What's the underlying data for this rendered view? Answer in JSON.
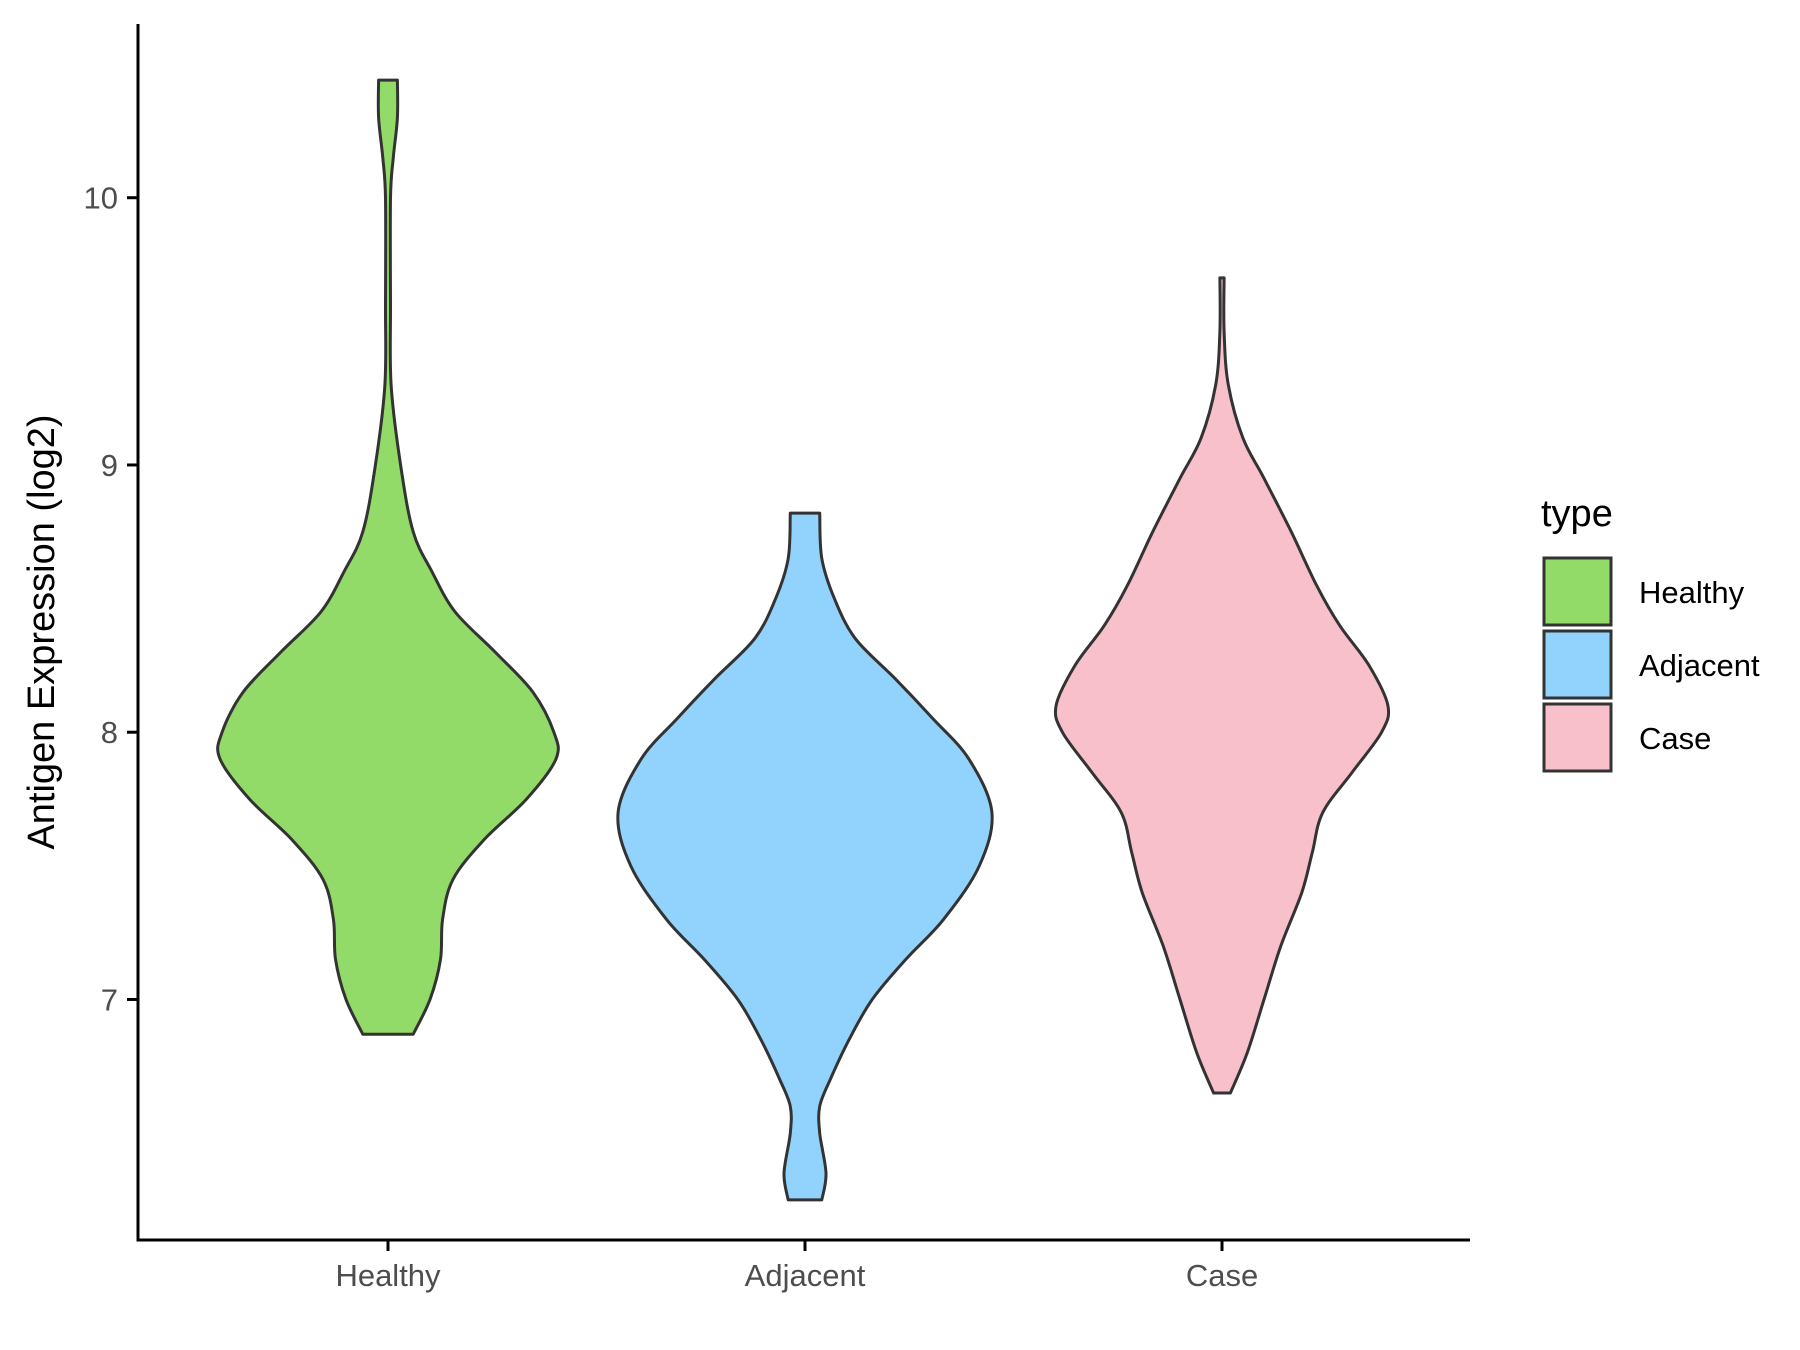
{
  "chart_data": {
    "type": "violin",
    "title": "",
    "xlabel": "",
    "ylabel": "Antigen Expression (log2)",
    "ylim": [
      6.1,
      10.65
    ],
    "y_ticks": [
      7,
      8,
      9,
      10
    ],
    "grid": false,
    "categories": [
      "Healthy",
      "Adjacent",
      "Case"
    ],
    "legend": {
      "title": "type",
      "position": "right",
      "entries": [
        "Healthy",
        "Adjacent",
        "Case"
      ]
    },
    "series": [
      {
        "name": "Healthy",
        "color": "#93DB69",
        "range": [
          6.87,
          10.44
        ],
        "profile": [
          [
            6.87,
            0.12
          ],
          [
            7.0,
            0.2
          ],
          [
            7.15,
            0.25
          ],
          [
            7.3,
            0.26
          ],
          [
            7.45,
            0.31
          ],
          [
            7.6,
            0.46
          ],
          [
            7.75,
            0.66
          ],
          [
            7.9,
            0.8
          ],
          [
            8.0,
            0.79
          ],
          [
            8.15,
            0.69
          ],
          [
            8.3,
            0.51
          ],
          [
            8.45,
            0.32
          ],
          [
            8.6,
            0.21
          ],
          [
            8.75,
            0.12
          ],
          [
            9.0,
            0.06
          ],
          [
            9.3,
            0.015
          ],
          [
            9.6,
            0.012
          ],
          [
            10.0,
            0.012
          ],
          [
            10.15,
            0.025
          ],
          [
            10.3,
            0.045
          ],
          [
            10.44,
            0.045
          ]
        ]
      },
      {
        "name": "Adjacent",
        "color": "#92D3FE",
        "range": [
          6.25,
          8.82
        ],
        "profile": [
          [
            6.25,
            0.08
          ],
          [
            6.35,
            0.1
          ],
          [
            6.5,
            0.07
          ],
          [
            6.6,
            0.07
          ],
          [
            6.7,
            0.12
          ],
          [
            6.85,
            0.21
          ],
          [
            7.0,
            0.32
          ],
          [
            7.15,
            0.48
          ],
          [
            7.3,
            0.66
          ],
          [
            7.5,
            0.83
          ],
          [
            7.7,
            0.89
          ],
          [
            7.9,
            0.78
          ],
          [
            8.05,
            0.61
          ],
          [
            8.2,
            0.43
          ],
          [
            8.35,
            0.24
          ],
          [
            8.5,
            0.14
          ],
          [
            8.65,
            0.08
          ],
          [
            8.82,
            0.07
          ]
        ]
      },
      {
        "name": "Case",
        "color": "#F8C0CB",
        "range": [
          6.65,
          9.7
        ],
        "profile": [
          [
            6.65,
            0.04
          ],
          [
            6.8,
            0.12
          ],
          [
            7.0,
            0.2
          ],
          [
            7.2,
            0.28
          ],
          [
            7.4,
            0.38
          ],
          [
            7.55,
            0.43
          ],
          [
            7.7,
            0.48
          ],
          [
            7.85,
            0.62
          ],
          [
            8.0,
            0.76
          ],
          [
            8.1,
            0.79
          ],
          [
            8.25,
            0.7
          ],
          [
            8.4,
            0.56
          ],
          [
            8.55,
            0.45
          ],
          [
            8.75,
            0.33
          ],
          [
            8.95,
            0.2
          ],
          [
            9.1,
            0.1
          ],
          [
            9.3,
            0.03
          ],
          [
            9.5,
            0.01
          ],
          [
            9.7,
            0.01
          ]
        ]
      }
    ]
  }
}
